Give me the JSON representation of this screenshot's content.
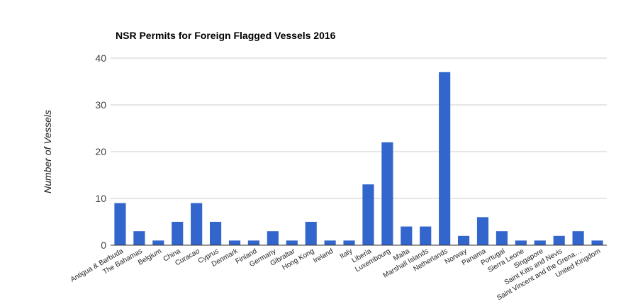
{
  "chart_data": {
    "type": "bar",
    "title": "NSR Permits for Foreign Flagged Vessels 2016",
    "xlabel": "",
    "ylabel": "Number of Vessels",
    "ylim": [
      0,
      40
    ],
    "yticks": [
      0,
      10,
      20,
      30,
      40
    ],
    "grid": true,
    "legend": "none",
    "bar_color": "#3366cc",
    "categories": [
      "Antigua & Barbuda",
      "The Bahamas",
      "Belgium",
      "China",
      "Curacao",
      "Cyprus",
      "Denmark",
      "Finland",
      "Germany",
      "Gibraltar",
      "Hong Kong",
      "Ireland",
      "Italy",
      "Liberia",
      "Luxembourg",
      "Malta",
      "Marshall Islands",
      "Netherlands",
      "Norway",
      "Panama",
      "Portugal",
      "Sierra Leone",
      "Singapore",
      "Saint Kitts and Nevis",
      "Saint Vincent and the Grena…",
      "United Kingdom"
    ],
    "values": [
      9,
      3,
      1,
      5,
      9,
      5,
      1,
      1,
      3,
      1,
      5,
      1,
      1,
      13,
      22,
      4,
      4,
      37,
      2,
      6,
      3,
      1,
      1,
      2,
      3,
      1
    ]
  }
}
